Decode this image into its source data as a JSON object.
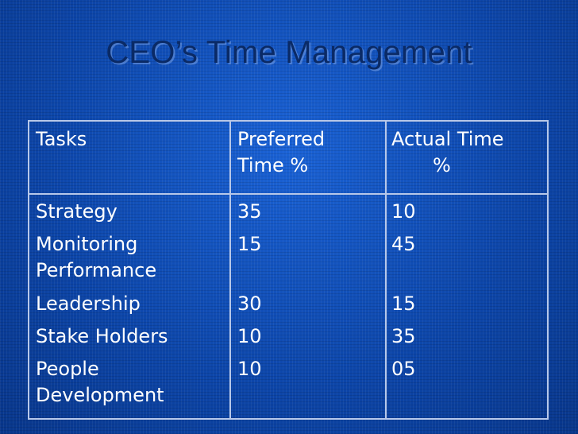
{
  "slide": {
    "title": "CEO’s Time Management"
  },
  "table": {
    "headers": {
      "tasks": "Tasks",
      "preferred_line1": "Preferred",
      "preferred_line2": "Time %",
      "actual_line1": "Actual Time",
      "actual_line2": "%"
    },
    "rows": [
      {
        "task_line1": "Strategy",
        "task_line2": "",
        "preferred": "35",
        "actual": "10"
      },
      {
        "task_line1": "Monitoring",
        "task_line2": "Performance",
        "preferred": "15",
        "actual": "45"
      },
      {
        "task_line1": "Leadership",
        "task_line2": "",
        "preferred": "30",
        "actual": "15"
      },
      {
        "task_line1": "Stake Holders",
        "task_line2": "",
        "preferred": "10",
        "actual": "35"
      },
      {
        "task_line1": "People",
        "task_line2": "Development",
        "preferred": "10",
        "actual": "05"
      }
    ]
  },
  "colors": {
    "background": "#0d4bb5",
    "title": "#0a2a66",
    "table_text": "#ffffff",
    "table_lines": "#b7c8ea"
  }
}
